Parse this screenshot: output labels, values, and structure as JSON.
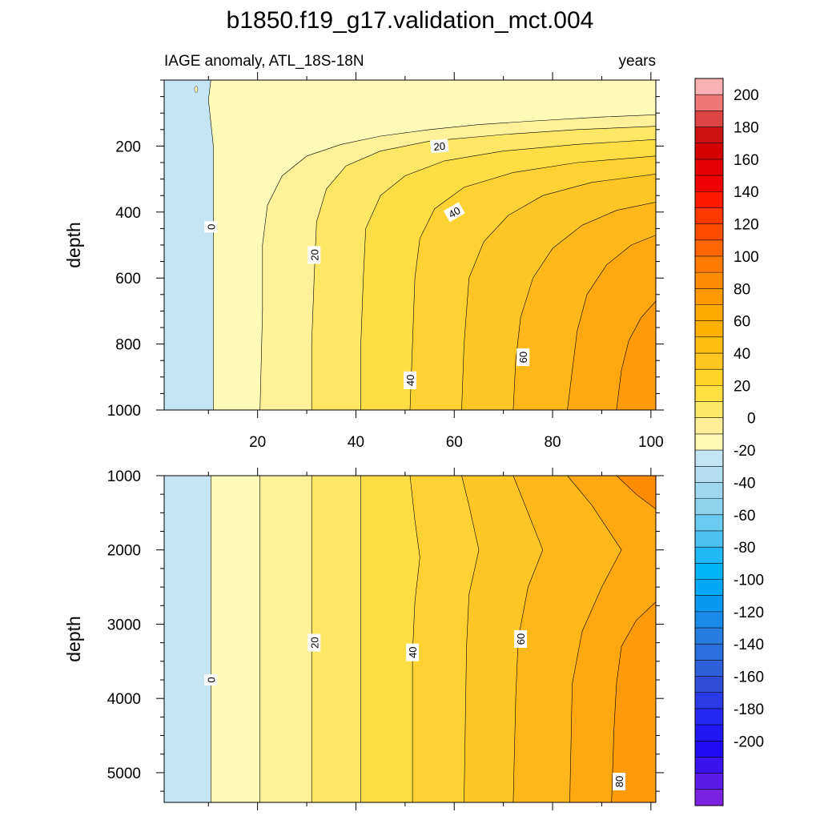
{
  "title": "b1850.f19_g17.validation_mct.004",
  "chart_data": {
    "type": "heatmap",
    "subtitle_left": "IAGE anomaly, ATL_18S-18N",
    "subtitle_right": "years",
    "xlim": [
      1,
      101
    ],
    "xticks": [
      20,
      40,
      60,
      80,
      100
    ],
    "xtick_labels": [
      "20",
      "40",
      "60",
      "80",
      "100"
    ],
    "panels": [
      {
        "name": "upper",
        "ylabel": "depth",
        "ylim": [
          0,
          1000
        ],
        "yticks": [
          200,
          400,
          600,
          800,
          1000
        ],
        "ytick_labels": [
          "200",
          "400",
          "600",
          "800",
          "1000"
        ],
        "contour_labels": [
          {
            "text": "0",
            "x": 10.5,
            "y": 445
          },
          {
            "text": "20",
            "x": 31.5,
            "y": 530
          },
          {
            "text": "20",
            "x": 57.0,
            "y": 200
          },
          {
            "text": "40",
            "x": 51.0,
            "y": 910
          },
          {
            "text": "40",
            "x": 60.0,
            "y": 400
          },
          {
            "text": "60",
            "x": 74.0,
            "y": 840
          }
        ]
      },
      {
        "name": "lower",
        "ylabel": "depth",
        "ylim": [
          1000,
          5400
        ],
        "yticks": [
          1000,
          2000,
          3000,
          4000,
          5000
        ],
        "ytick_labels": [
          "1000",
          "2000",
          "3000",
          "4000",
          "5000"
        ],
        "contour_labels": [
          {
            "text": "0",
            "x": 10.5,
            "y": 3750
          },
          {
            "text": "20",
            "x": 31.5,
            "y": 3250
          },
          {
            "text": "40",
            "x": 51.5,
            "y": 3380
          },
          {
            "text": "60",
            "x": 73.5,
            "y": 3200
          },
          {
            "text": "80",
            "x": 93.5,
            "y": 5120
          }
        ]
      }
    ],
    "colorbar": {
      "labels": [
        "200",
        "180",
        "160",
        "140",
        "120",
        "100",
        "80",
        "60",
        "40",
        "20",
        "0",
        "-20",
        "-40",
        "-60",
        "-80",
        "-100",
        "-120",
        "-140",
        "-160",
        "-180",
        "-200"
      ],
      "colors": [
        "#f9b1b3",
        "#ef7777",
        "#dd4444",
        "#cc1111",
        "#d40000",
        "#e40000",
        "#f00000",
        "#ff1a00",
        "#ff3a00",
        "#ff4d00",
        "#ff6600",
        "#ff7a00",
        "#ff8c00",
        "#ff9900",
        "#ffa800",
        "#ffb000",
        "#ffbe10",
        "#ffc71f",
        "#ffd426",
        "#ffe040",
        "#ffe866",
        "#ffef99",
        "#fff9b5",
        "#c3e4f4",
        "#b4def1",
        "#9fd8ee",
        "#8cd3ee",
        "#6bcaf0",
        "#4dc0f2",
        "#20b9f5",
        "#00b3f5",
        "#00a8f5",
        "#0a99f2",
        "#1a8ae8",
        "#277ce0",
        "#2a6fde",
        "#2e60dc",
        "#304dd9",
        "#2b3ae6",
        "#2528f0",
        "#1f18f5",
        "#1f0cf5",
        "#3a12ee",
        "#5a1ae8",
        "#7a22e0"
      ]
    }
  }
}
